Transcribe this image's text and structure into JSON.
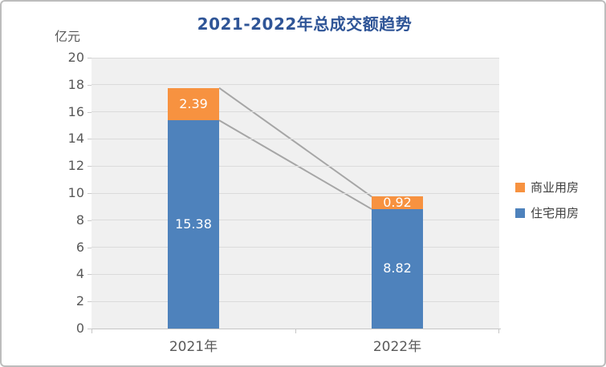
{
  "chart": {
    "title": "2021-2022年总成交额趋势",
    "unit_label": "亿元",
    "title_color": "#2F5597",
    "colors": {
      "plot_background": "#f0f0f0",
      "gridline": "#dbdbdb",
      "axis": "#c6c6c6",
      "axis_text": "#595959",
      "connector_line": "#a6a6a6",
      "data_label_text": "#ffffff"
    }
  },
  "chart_data": {
    "type": "bar",
    "stacked": true,
    "title": "2021-2022年总成交额趋势",
    "ylabel": "亿元",
    "xlabel": "",
    "categories": [
      "2021年",
      "2022年"
    ],
    "series": [
      {
        "name": "住宅用房",
        "color": "#4E82BC",
        "values": [
          15.38,
          8.82
        ]
      },
      {
        "name": "商业用房",
        "color": "#F79240",
        "values": [
          2.39,
          0.92
        ]
      }
    ],
    "totals": [
      17.77,
      9.74
    ],
    "ylim": [
      0,
      20
    ],
    "ytick_step": 2,
    "grid": true,
    "data_labels": [
      "15.38",
      "8.82",
      "2.39",
      "0.92"
    ],
    "legend_position": "right",
    "legend_order": [
      "商业用房",
      "住宅用房"
    ],
    "series_connector_lines": true
  }
}
